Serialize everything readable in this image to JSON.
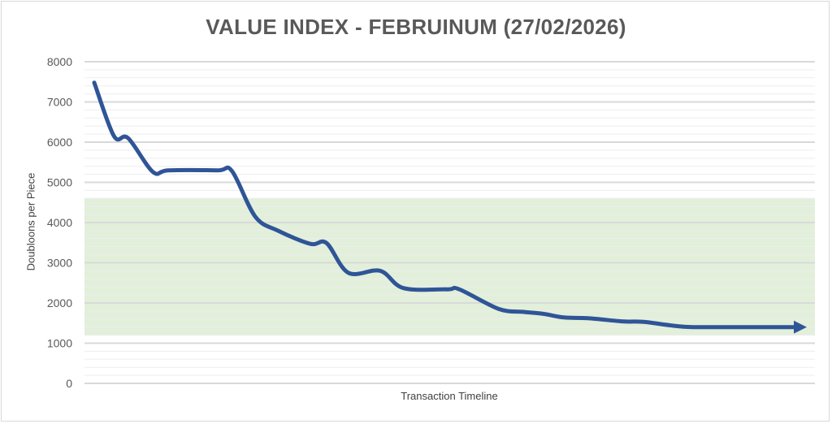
{
  "chart_data": {
    "type": "line",
    "title": "VALUE INDEX - FEBRUINUM (27/02/2026)",
    "xlabel": "Transaction Timeline",
    "ylabel": "Doubloons per Piece",
    "ylim": [
      0,
      8000
    ],
    "yticks": [
      0,
      1000,
      2000,
      3000,
      4000,
      5000,
      6000,
      7000,
      8000
    ],
    "grid": true,
    "legend": "none",
    "band": {
      "from": 1200,
      "to": 4600,
      "color": "#e2efda"
    },
    "series": [
      {
        "color": "#2f5597",
        "points": [
          [
            0,
            7480
          ],
          [
            2.8,
            6150
          ],
          [
            4.8,
            6100
          ],
          [
            8.3,
            5260
          ],
          [
            10.5,
            5300
          ],
          [
            17.5,
            5300
          ],
          [
            19.5,
            5280
          ],
          [
            22.8,
            4150
          ],
          [
            26,
            3800
          ],
          [
            30.6,
            3470
          ],
          [
            32.9,
            3490
          ],
          [
            36,
            2750
          ],
          [
            40.5,
            2800
          ],
          [
            43.8,
            2370
          ],
          [
            50,
            2340
          ],
          [
            51.7,
            2340
          ],
          [
            57.3,
            1850
          ],
          [
            60.7,
            1780
          ],
          [
            63.6,
            1730
          ],
          [
            66.5,
            1640
          ],
          [
            69.9,
            1620
          ],
          [
            75,
            1540
          ],
          [
            77.8,
            1530
          ],
          [
            83.5,
            1410
          ],
          [
            90,
            1400
          ],
          [
            100,
            1400
          ]
        ]
      }
    ]
  }
}
